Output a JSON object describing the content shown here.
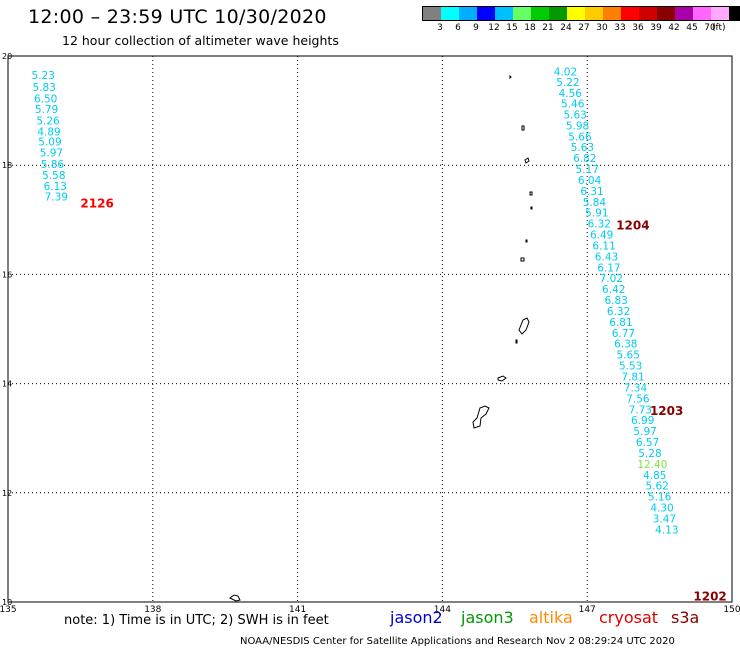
{
  "title": "12:00 – 23:59 UTC 10/30/2020",
  "subtitle": "12 hour collection of altimeter wave heights",
  "colorbar": {
    "unit": "(ft)",
    "colors": [
      "#808080",
      "#00ffff",
      "#00b0ff",
      "#0000ff",
      "#00bfff",
      "#66ff66",
      "#00cc00",
      "#009900",
      "#ffff00",
      "#ffcc00",
      "#ff8000",
      "#ff0000",
      "#cc0000",
      "#880000",
      "#aa00aa",
      "#ff66ff",
      "#ffaaff",
      "#000000"
    ],
    "labels": [
      "3",
      "6",
      "9",
      "12",
      "15",
      "18",
      "21",
      "24",
      "27",
      "30",
      "33",
      "36",
      "39",
      "42",
      "45",
      "70"
    ]
  },
  "note": "note: 1) Time is in UTC; 2) SWH is in feet",
  "legend": [
    {
      "name": "jason2",
      "color": "#0000cc"
    },
    {
      "name": "jason3",
      "color": "#009900"
    },
    {
      "name": "altika",
      "color": "#ff8800"
    },
    {
      "name": "cryosat",
      "color": "#dd0000"
    },
    {
      "name": "s3a",
      "color": "#880000"
    }
  ],
  "credit": "NOAA/NESDIS Center for Satellite Applications and Research    Nov  2 08:29:24 UTC 2020",
  "chart_data": {
    "type": "scatter",
    "title": "12:00 – 23:59 UTC 10/30/2020",
    "subtitle": "12 hour collection of altimeter wave heights",
    "xlabel": "",
    "ylabel": "",
    "xlim": [
      135,
      150
    ],
    "ylim": [
      10,
      20
    ],
    "x_ticks": [
      135,
      138,
      141,
      144,
      147,
      150
    ],
    "y_ticks": [
      10,
      12,
      14,
      16,
      18,
      20
    ],
    "grid": true,
    "point_color": "#00ccee",
    "highlight_color": "#88dd44",
    "track_labels": [
      {
        "text": "2126",
        "lon": 136.5,
        "lat": 17.3,
        "color": "#ff0000"
      },
      {
        "text": "1204",
        "lon": 147.6,
        "lat": 16.9,
        "color": "#880000"
      },
      {
        "text": "1203",
        "lon": 148.3,
        "lat": 13.5,
        "color": "#880000"
      },
      {
        "text": "1202",
        "lon": 149.2,
        "lat": 10.1,
        "color": "#880000"
      }
    ],
    "series": [
      {
        "name": "2126",
        "points": [
          {
            "lon": 135.73,
            "lat": 19.65,
            "v": "5.23"
          },
          {
            "lon": 135.75,
            "lat": 19.43,
            "v": "5.83"
          },
          {
            "lon": 135.78,
            "lat": 19.22,
            "v": "6.50"
          },
          {
            "lon": 135.8,
            "lat": 19.03,
            "v": "5.79"
          },
          {
            "lon": 135.83,
            "lat": 18.82,
            "v": "5.26"
          },
          {
            "lon": 135.85,
            "lat": 18.62,
            "v": "4.89"
          },
          {
            "lon": 135.87,
            "lat": 18.43,
            "v": "5.09"
          },
          {
            "lon": 135.9,
            "lat": 18.23,
            "v": "5.97"
          },
          {
            "lon": 135.92,
            "lat": 18.02,
            "v": "5.86"
          },
          {
            "lon": 135.95,
            "lat": 17.82,
            "v": "5.58"
          },
          {
            "lon": 135.98,
            "lat": 17.62,
            "v": "6.13"
          },
          {
            "lon": 136.0,
            "lat": 17.43,
            "v": "7.39"
          }
        ]
      },
      {
        "name": "1204",
        "points": [
          {
            "lon": 146.55,
            "lat": 19.72,
            "v": "4.02"
          },
          {
            "lon": 146.6,
            "lat": 19.52,
            "v": "5.22"
          },
          {
            "lon": 146.65,
            "lat": 19.32,
            "v": "4.56"
          },
          {
            "lon": 146.7,
            "lat": 19.13,
            "v": "5.46"
          },
          {
            "lon": 146.75,
            "lat": 18.93,
            "v": "5.63"
          },
          {
            "lon": 146.8,
            "lat": 18.73,
            "v": "5.98"
          },
          {
            "lon": 146.85,
            "lat": 18.53,
            "v": "5.66"
          },
          {
            "lon": 146.9,
            "lat": 18.33,
            "v": "5.63"
          },
          {
            "lon": 146.95,
            "lat": 18.13,
            "v": "6.82"
          },
          {
            "lon": 147.0,
            "lat": 17.93,
            "v": "5.17"
          },
          {
            "lon": 147.05,
            "lat": 17.73,
            "v": "6.04"
          },
          {
            "lon": 147.1,
            "lat": 17.53,
            "v": "6.31"
          },
          {
            "lon": 147.15,
            "lat": 17.33,
            "v": "5.84"
          },
          {
            "lon": 147.2,
            "lat": 17.13,
            "v": "5.91"
          },
          {
            "lon": 147.25,
            "lat": 16.93,
            "v": "6.32"
          },
          {
            "lon": 147.3,
            "lat": 16.73,
            "v": "6.49"
          },
          {
            "lon": 147.35,
            "lat": 16.53,
            "v": "6.11"
          },
          {
            "lon": 147.4,
            "lat": 16.33,
            "v": "6.43"
          },
          {
            "lon": 147.45,
            "lat": 16.13,
            "v": "6.17"
          },
          {
            "lon": 147.5,
            "lat": 15.93,
            "v": "7.02"
          },
          {
            "lon": 147.55,
            "lat": 15.73,
            "v": "6.42"
          },
          {
            "lon": 147.6,
            "lat": 15.53,
            "v": "6.83"
          },
          {
            "lon": 147.65,
            "lat": 15.33,
            "v": "6.32"
          },
          {
            "lon": 147.7,
            "lat": 15.13,
            "v": "6.81"
          },
          {
            "lon": 147.75,
            "lat": 14.93,
            "v": "6.77"
          },
          {
            "lon": 147.8,
            "lat": 14.73,
            "v": "6.38"
          },
          {
            "lon": 147.85,
            "lat": 14.53,
            "v": "5.65"
          },
          {
            "lon": 147.9,
            "lat": 14.33,
            "v": "5.53"
          },
          {
            "lon": 147.95,
            "lat": 14.13,
            "v": "7.81"
          },
          {
            "lon": 148.0,
            "lat": 13.93,
            "v": "7.34"
          },
          {
            "lon": 148.05,
            "lat": 13.73,
            "v": "7.56"
          },
          {
            "lon": 148.1,
            "lat": 13.53,
            "v": "7.73"
          },
          {
            "lon": 148.15,
            "lat": 13.33,
            "v": "6.99"
          },
          {
            "lon": 148.2,
            "lat": 13.13,
            "v": "5.97"
          },
          {
            "lon": 148.25,
            "lat": 12.93,
            "v": "6.57"
          },
          {
            "lon": 148.3,
            "lat": 12.73,
            "v": "5.28"
          },
          {
            "lon": 148.35,
            "lat": 12.53,
            "v": "12.40",
            "highlight": true
          },
          {
            "lon": 148.4,
            "lat": 12.33,
            "v": "4.85"
          },
          {
            "lon": 148.45,
            "lat": 12.13,
            "v": "5.62"
          },
          {
            "lon": 148.5,
            "lat": 11.93,
            "v": "5.16"
          },
          {
            "lon": 148.55,
            "lat": 11.73,
            "v": "4.30"
          },
          {
            "lon": 148.6,
            "lat": 11.53,
            "v": "3.47"
          },
          {
            "lon": 148.65,
            "lat": 11.33,
            "v": "4.13"
          }
        ]
      }
    ]
  }
}
